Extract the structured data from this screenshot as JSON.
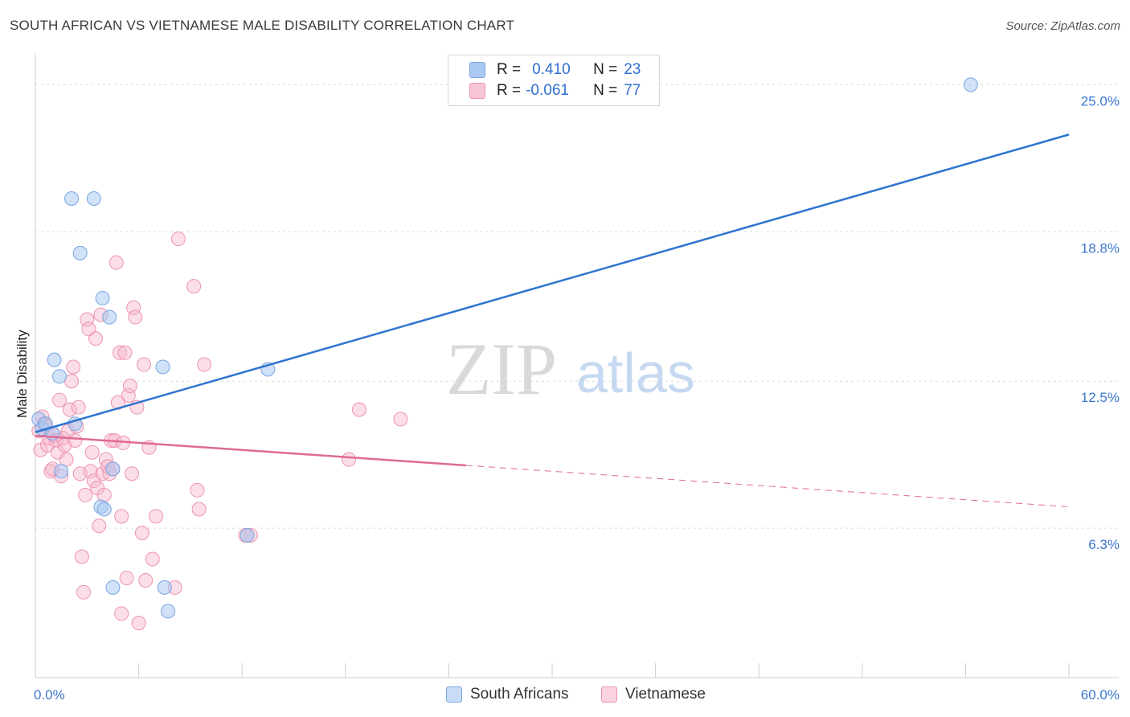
{
  "header": {
    "title": "SOUTH AFRICAN VS VIETNAMESE MALE DISABILITY CORRELATION CHART",
    "source": "Source: ZipAtlas.com"
  },
  "watermark": {
    "zip": "ZIP",
    "atlas": "atlas"
  },
  "legend_top": {
    "rows": [
      {
        "r_label": "R =",
        "r_value": "0.410",
        "n_label": "N =",
        "n_value": "23",
        "color": "#aac8f2"
      },
      {
        "r_label": "R =",
        "r_value": "-0.061",
        "n_label": "N =",
        "n_value": "77",
        "color": "#f6b6cb"
      }
    ]
  },
  "legend_bottom": {
    "items": [
      {
        "label": "South Africans",
        "color": "#aac8f2"
      },
      {
        "label": "Vietnamese",
        "color": "#f6b6cb"
      }
    ]
  },
  "chart_data": {
    "type": "scatter",
    "title": "SOUTH AFRICAN VS VIETNAMESE MALE DISABILITY CORRELATION CHART",
    "xlabel": "",
    "ylabel": "Male Disability",
    "xlim": [
      0,
      60
    ],
    "ylim": [
      0,
      26.2
    ],
    "x_tick_labels": [
      "0.0%",
      "60.0%"
    ],
    "y_ticks": [
      6.3,
      12.5,
      18.8,
      25.0
    ],
    "y_tick_labels": [
      "6.3%",
      "12.5%",
      "18.8%",
      "25.0%"
    ],
    "grid": "horizontal dashed",
    "legend_position": "top-center",
    "colors": {
      "south_africans_fill": "#aac8f2",
      "south_africans_stroke": "#7aa6e0",
      "south_africans_line": "#2f74d0",
      "vietnamese_fill": "#f6b6cb",
      "vietnamese_stroke": "#ec94b2",
      "vietnamese_line": "#e06a94"
    },
    "series": [
      {
        "name": "South Africans",
        "points": [
          [
            0.2,
            10.9
          ],
          [
            0.4,
            10.5
          ],
          [
            0.6,
            10.7
          ],
          [
            1.0,
            10.3
          ],
          [
            1.1,
            13.4
          ],
          [
            1.4,
            12.7
          ],
          [
            1.5,
            8.7
          ],
          [
            2.1,
            20.2
          ],
          [
            2.3,
            10.7
          ],
          [
            2.6,
            17.9
          ],
          [
            3.4,
            20.2
          ],
          [
            3.8,
            7.2
          ],
          [
            3.9,
            16.0
          ],
          [
            4.0,
            7.1
          ],
          [
            4.3,
            15.2
          ],
          [
            4.5,
            3.8
          ],
          [
            4.5,
            8.8
          ],
          [
            7.4,
            13.1
          ],
          [
            7.5,
            3.8
          ],
          [
            7.7,
            2.8
          ],
          [
            12.3,
            6.0
          ],
          [
            13.5,
            13.0
          ],
          [
            54.3,
            25.0
          ]
        ],
        "trend": {
          "x": [
            0,
            60
          ],
          "y": [
            10.35,
            22.9
          ]
        }
      },
      {
        "name": "Vietnamese",
        "points": [
          [
            0.2,
            10.4
          ],
          [
            0.3,
            9.6
          ],
          [
            0.4,
            11.0
          ],
          [
            0.5,
            10.7
          ],
          [
            0.6,
            10.6
          ],
          [
            0.7,
            9.8
          ],
          [
            0.8,
            10.1
          ],
          [
            0.9,
            8.7
          ],
          [
            1.0,
            8.8
          ],
          [
            1.1,
            10.2
          ],
          [
            1.2,
            10.0
          ],
          [
            1.3,
            9.5
          ],
          [
            1.4,
            11.7
          ],
          [
            1.5,
            8.5
          ],
          [
            1.6,
            10.1
          ],
          [
            1.7,
            9.8
          ],
          [
            1.8,
            9.2
          ],
          [
            1.9,
            10.4
          ],
          [
            2.0,
            11.3
          ],
          [
            2.1,
            12.5
          ],
          [
            2.2,
            13.1
          ],
          [
            2.3,
            10.0
          ],
          [
            2.4,
            10.6
          ],
          [
            2.5,
            11.4
          ],
          [
            2.6,
            8.6
          ],
          [
            2.7,
            5.1
          ],
          [
            2.8,
            3.6
          ],
          [
            2.9,
            7.7
          ],
          [
            3.0,
            15.1
          ],
          [
            3.1,
            14.7
          ],
          [
            3.2,
            8.7
          ],
          [
            3.3,
            9.5
          ],
          [
            3.4,
            8.3
          ],
          [
            3.5,
            14.3
          ],
          [
            3.6,
            8.0
          ],
          [
            3.7,
            6.4
          ],
          [
            3.8,
            15.3
          ],
          [
            3.9,
            8.6
          ],
          [
            4.0,
            7.7
          ],
          [
            4.1,
            9.2
          ],
          [
            4.2,
            8.9
          ],
          [
            4.3,
            8.6
          ],
          [
            4.4,
            10.0
          ],
          [
            4.5,
            8.8
          ],
          [
            4.6,
            10.0
          ],
          [
            4.7,
            17.5
          ],
          [
            4.8,
            11.6
          ],
          [
            4.9,
            13.7
          ],
          [
            5.0,
            2.7
          ],
          [
            5.1,
            9.9
          ],
          [
            5.2,
            13.7
          ],
          [
            5.3,
            4.2
          ],
          [
            5.4,
            11.9
          ],
          [
            5.5,
            12.3
          ],
          [
            5.6,
            8.6
          ],
          [
            5.7,
            15.6
          ],
          [
            5.8,
            15.2
          ],
          [
            5.9,
            11.4
          ],
          [
            6.0,
            2.3
          ],
          [
            6.2,
            6.1
          ],
          [
            6.3,
            13.2
          ],
          [
            6.4,
            4.1
          ],
          [
            6.6,
            9.7
          ],
          [
            6.8,
            5.0
          ],
          [
            7.0,
            6.8
          ],
          [
            8.1,
            3.8
          ],
          [
            8.3,
            18.5
          ],
          [
            9.2,
            16.5
          ],
          [
            9.4,
            7.9
          ],
          [
            9.5,
            7.1
          ],
          [
            9.8,
            13.2
          ],
          [
            12.2,
            6.0
          ],
          [
            12.5,
            6.0
          ],
          [
            18.2,
            9.2
          ],
          [
            18.8,
            11.3
          ],
          [
            21.2,
            10.9
          ],
          [
            5.0,
            6.8
          ]
        ],
        "trend": {
          "x": [
            0,
            60
          ],
          "y": [
            10.2,
            7.2
          ]
        },
        "trend_solid_until_x": 25
      }
    ]
  }
}
